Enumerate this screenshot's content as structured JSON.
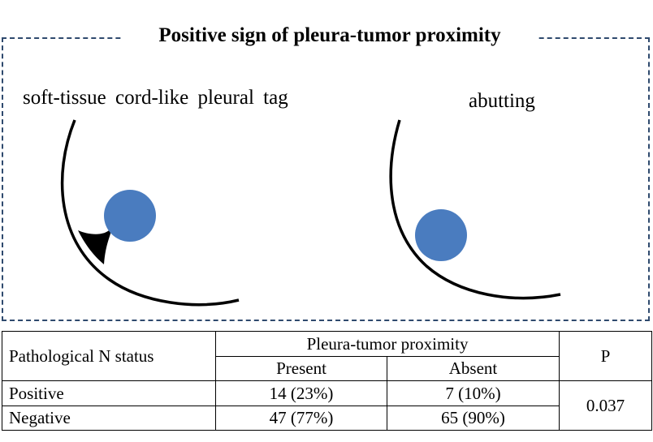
{
  "figure": {
    "title": "Positive sign of pleura-tumor proximity",
    "left_label": "soft-tissue cord-like pleural tag",
    "right_label": "abutting",
    "colors": {
      "tumor": "#4a7cbf",
      "pleura": "#000000",
      "frame_border": "#2f4a6e"
    }
  },
  "table": {
    "row_header": "Pathological N status",
    "group_header": "Pleura-tumor proximity",
    "col_present": "Present",
    "col_absent": "Absent",
    "col_p": "P",
    "rows": [
      {
        "label": "Positive",
        "present": "14 (23%)",
        "absent": "7 (10%)"
      },
      {
        "label": "Negative",
        "present": "47 (77%)",
        "absent": "65 (90%)"
      }
    ],
    "p_value": "0.037"
  }
}
